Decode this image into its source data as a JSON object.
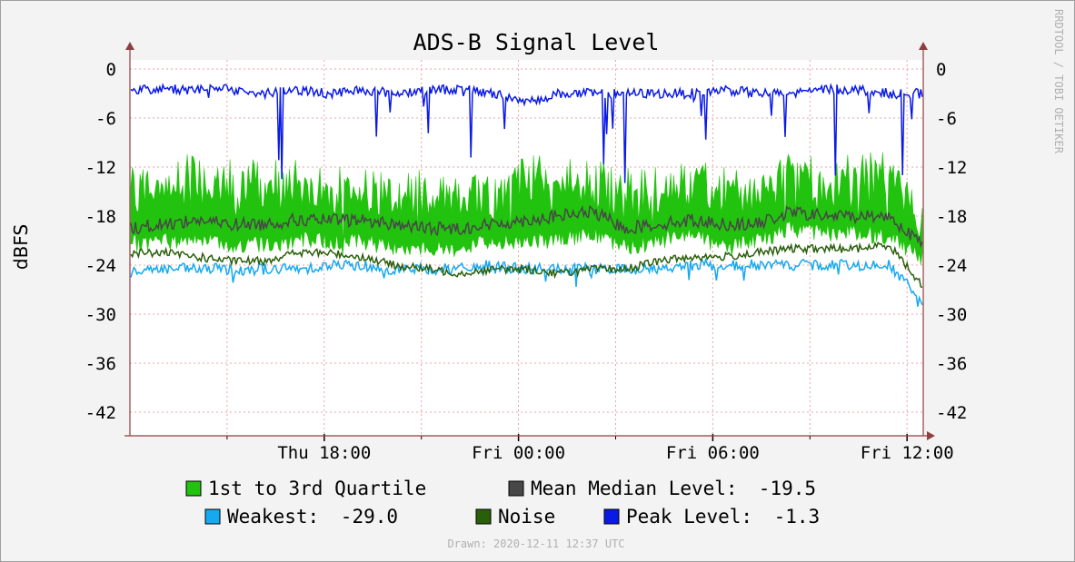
{
  "chart_data": {
    "type": "line",
    "title": "ADS-B Signal Level",
    "ylabel": "dBFS",
    "watermark": "RRDTOOL / TOBI OETIKER",
    "footer": "Drawn: 2020-12-11 12:37 UTC",
    "ylim": [
      -45,
      1
    ],
    "yticks": [
      0,
      -6,
      -12,
      -18,
      -24,
      -30,
      -36,
      -42
    ],
    "ytick_labels": [
      "0",
      "-6",
      "-12",
      "-18",
      "-24",
      "-30",
      "-36",
      "-42"
    ],
    "x_range_hours": [
      -24,
      0.5
    ],
    "xticks": [
      {
        "label": "Thu 18:00",
        "hour": -18
      },
      {
        "label": "Fri 00:00",
        "hour": -12
      },
      {
        "label": "Fri 06:00",
        "hour": -6
      },
      {
        "label": "Fri 12:00",
        "hour": 0
      }
    ],
    "minor_x_hours": [
      -21,
      -15,
      -9,
      -3
    ],
    "grid": true,
    "colors": {
      "quartile": "#22c30e",
      "median": "#474747",
      "weakest": "#15a9f0",
      "noise": "#2a5f0a",
      "peak": "#0a1ae6",
      "grid": "#f0a0a0",
      "axis": "#8f3f3f"
    },
    "series": [
      {
        "name": "1st to 3rd Quartile",
        "kind": "band",
        "lower": [
          -21.5,
          -21,
          -21,
          -21.5,
          -21.5,
          -21,
          -21,
          -21,
          -22,
          -22,
          -22,
          -21,
          -21,
          -21,
          -20,
          -22,
          -21,
          -20,
          -22,
          -21,
          -19.5,
          -20,
          -20,
          -20.5,
          -23
        ],
        "upper": [
          -15,
          -14,
          -13,
          -14,
          -14,
          -14,
          -15,
          -15,
          -15,
          -15,
          -15,
          -16,
          -13,
          -14,
          -14,
          -15,
          -15,
          -14,
          -15,
          -15,
          -13,
          -14,
          -13,
          -13,
          -19
        ]
      },
      {
        "name": "Mean Median Level:",
        "value_label": "-19.5",
        "values": [
          -19.5,
          -19,
          -18.5,
          -19,
          -19,
          -18.5,
          -18.5,
          -18.5,
          -19,
          -19.5,
          -19.5,
          -19,
          -18.5,
          -18,
          -17.5,
          -19.5,
          -19,
          -18.5,
          -19,
          -19,
          -17.5,
          -18,
          -18,
          -18,
          -21.5
        ]
      },
      {
        "name": "Weakest:",
        "value_label": "-29.0",
        "values": [
          -24.5,
          -24.5,
          -24.5,
          -24.5,
          -24.5,
          -24.5,
          -24,
          -24,
          -24.5,
          -24.5,
          -24.5,
          -24,
          -24.5,
          -24.5,
          -24.5,
          -24.5,
          -24.5,
          -24,
          -24,
          -24,
          -24,
          -24,
          -24,
          -24,
          -28.5
        ]
      },
      {
        "name": "Noise",
        "values": [
          -22.5,
          -22.5,
          -23,
          -23.5,
          -23.5,
          -22.5,
          -22.5,
          -23,
          -24,
          -24.5,
          -25,
          -24.5,
          -24.5,
          -25,
          -24.5,
          -24.5,
          -23.5,
          -23,
          -23,
          -22.5,
          -22,
          -22,
          -22,
          -21.5,
          -26.5
        ]
      },
      {
        "name": "Peak Level:",
        "value_label": "-1.3",
        "values": [
          -2.5,
          -2.5,
          -2.5,
          -2.5,
          -3,
          -2.5,
          -3,
          -2.5,
          -3,
          -2.5,
          -2.5,
          -3,
          -4,
          -3,
          -3,
          -3,
          -3,
          -3,
          -2.5,
          -3,
          -3,
          -2.5,
          -2.5,
          -3,
          -3
        ]
      }
    ],
    "legend": {
      "placement": "bottom",
      "row1": [
        {
          "key": "quartile",
          "label": "1st to 3rd Quartile",
          "value": ""
        },
        {
          "key": "median",
          "label": "Mean Median Level:",
          "value": "-19.5"
        }
      ],
      "row2": [
        {
          "key": "weakest",
          "label": "Weakest:",
          "value": "-29.0"
        },
        {
          "key": "noise",
          "label": "Noise",
          "value": ""
        },
        {
          "key": "peak",
          "label": "Peak Level:",
          "value": "-1.3"
        }
      ]
    }
  }
}
